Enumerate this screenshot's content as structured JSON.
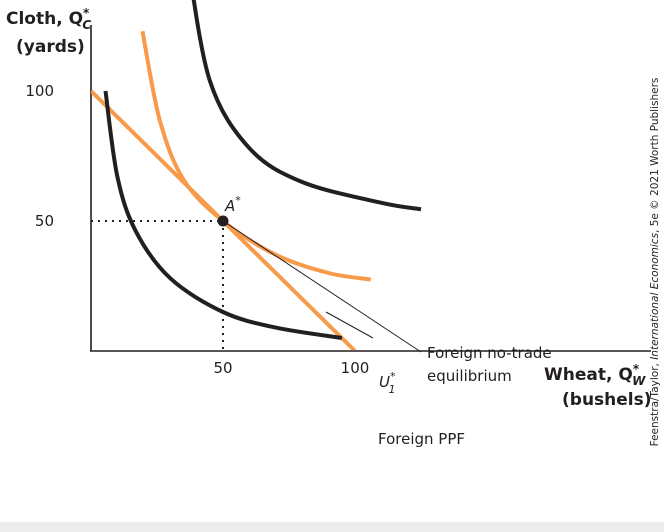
{
  "chart_data": {
    "type": "line",
    "ylabel": {
      "main": "Cloth, Q",
      "sup": "*",
      "sub": "C",
      "units": "(yards)"
    },
    "xlabel": {
      "main": "Wheat, Q",
      "sup": "*",
      "sub": "W",
      "units": "(bushels)"
    },
    "xticks": [
      50,
      100
    ],
    "yticks": [
      50,
      100
    ],
    "xlim": [
      0,
      110
    ],
    "ylim": [
      0,
      160
    ],
    "ppf": {
      "color": "#f79a4a",
      "points": [
        [
          0,
          100
        ],
        [
          100,
          0
        ]
      ],
      "label": "Foreign PPF"
    },
    "indifference_curves": [
      {
        "name": "",
        "color": "#231f20",
        "points": [
          [
            5.5,
            100
          ],
          [
            10,
            67
          ],
          [
            17,
            46
          ],
          [
            30,
            28
          ],
          [
            50,
            15
          ],
          [
            70,
            9
          ],
          [
            95,
            5
          ]
        ]
      },
      {
        "name": "U",
        "sup": "*",
        "sub": "1",
        "color": "#f79a4a",
        "points": [
          [
            19.5,
            123
          ],
          [
            26,
            89
          ],
          [
            35,
            66
          ],
          [
            50,
            50
          ],
          [
            70,
            37
          ],
          [
            90,
            30
          ],
          [
            106,
            27.5
          ]
        ]
      },
      {
        "name": "",
        "color": "#231f20",
        "points": [
          [
            36.5,
            151
          ],
          [
            45,
            104
          ],
          [
            60,
            78
          ],
          [
            80,
            65
          ],
          [
            110,
            57
          ],
          [
            125,
            54.5
          ]
        ]
      }
    ],
    "equilibrium": {
      "label": "A",
      "sup": "*",
      "x": 50,
      "y": 50,
      "annotation": [
        "Foreign no-trade",
        "equilibrium"
      ]
    },
    "grid": false,
    "legend": "none"
  },
  "credit": {
    "prefix": "Feenstra/Taylor, ",
    "italic": "International Economics",
    "suffix": ", 5e © 2021 Worth Publishers"
  },
  "colors": {
    "orange": "#f79a4a",
    "black": "#231f20",
    "background": "#ececec"
  }
}
